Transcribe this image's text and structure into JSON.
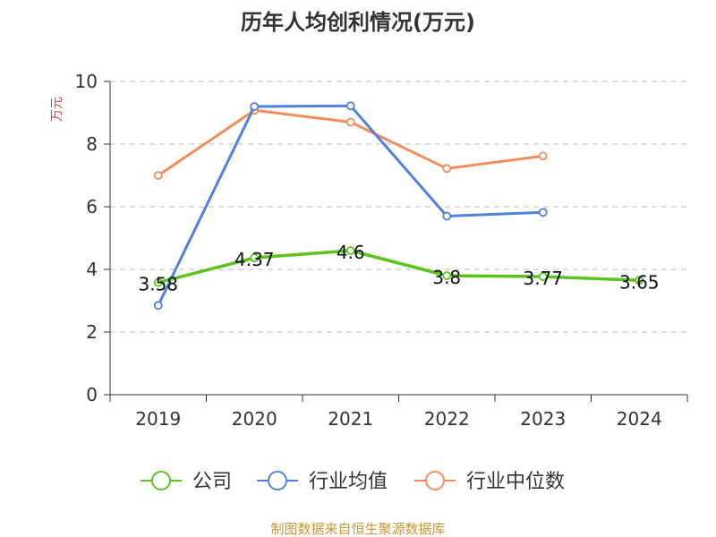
{
  "chart_data": {
    "type": "line",
    "title": "历年人均创利情况(万元)",
    "ylabel": "万元",
    "xlabel": "",
    "categories": [
      "2019",
      "2020",
      "2021",
      "2022",
      "2023",
      "2024"
    ],
    "ylim": [
      0,
      10
    ],
    "yticks": [
      0,
      2,
      4,
      6,
      8,
      10
    ],
    "grid": true,
    "legend_position": "bottom",
    "series": [
      {
        "name": "公司",
        "color": "#5cc31f",
        "values": [
          3.58,
          4.37,
          4.6,
          3.8,
          3.77,
          3.65
        ],
        "labels": [
          "3.58",
          "4.37",
          "4.6",
          "3.8",
          "3.77",
          "3.65"
        ]
      },
      {
        "name": "行业均值",
        "color": "#4f81dd",
        "values": [
          2.85,
          9.2,
          9.22,
          5.7,
          5.82,
          null
        ]
      },
      {
        "name": "行业中位数",
        "color": "#f58d5a",
        "values": [
          7.0,
          9.08,
          8.7,
          7.22,
          7.62,
          null
        ]
      }
    ],
    "source": "制图数据来自恒生聚源数据库"
  }
}
